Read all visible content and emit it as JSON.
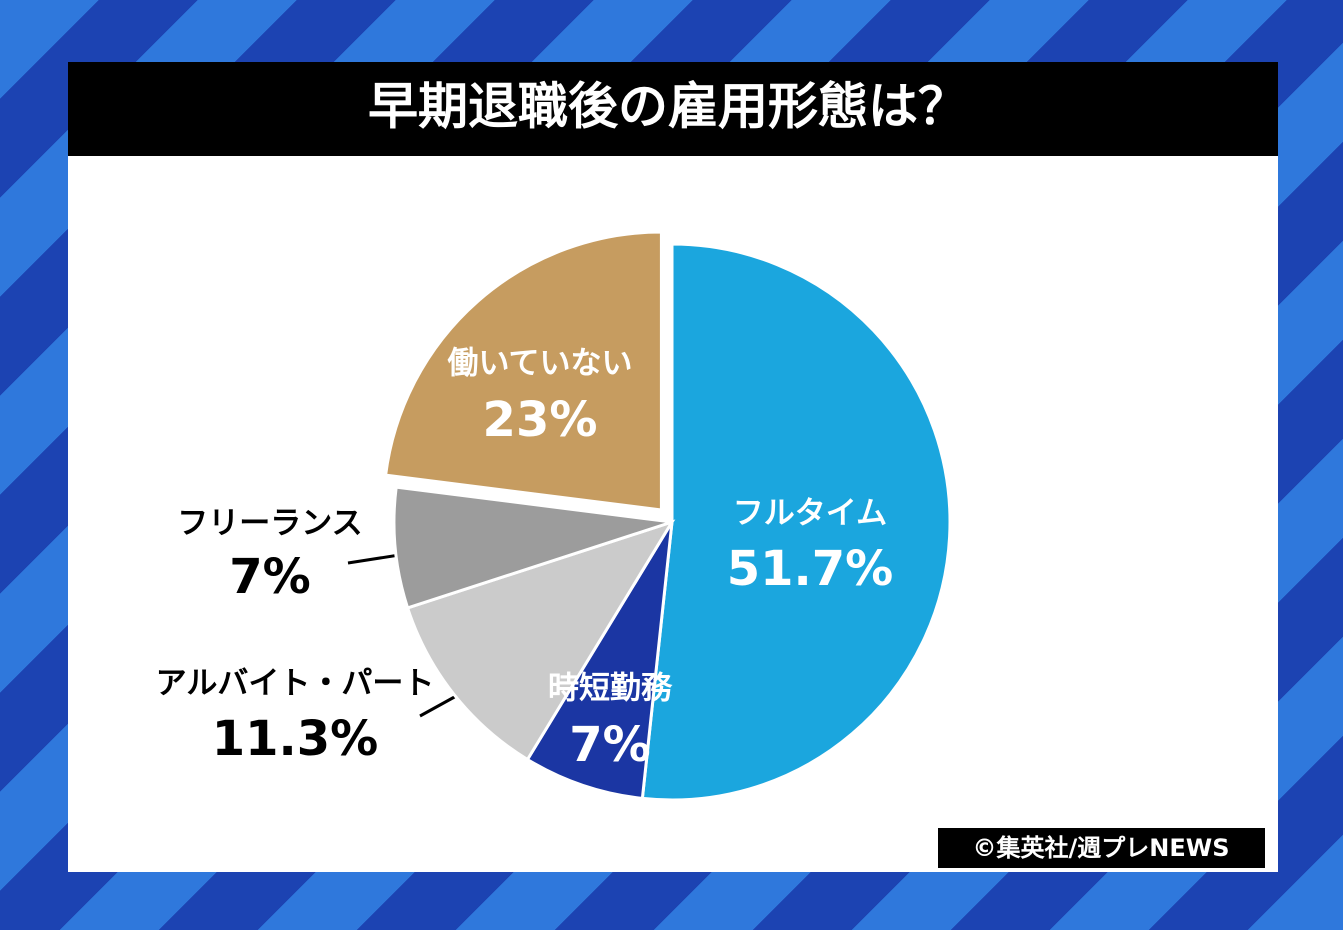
{
  "chart_data": {
    "type": "pie",
    "title": "早期退職後の雇用形態は？",
    "categories": [
      "フルタイム",
      "時短勤務",
      "アルバイト・パート",
      "フリーランス",
      "働いていない"
    ],
    "values": [
      51.7,
      7,
      11.3,
      7,
      23
    ],
    "value_labels": [
      "51.7%",
      "7%",
      "11.3%",
      "7%",
      "23%"
    ],
    "colors": [
      "#1ba6de",
      "#1b36a3",
      "#cbcbcb",
      "#9c9c9c",
      "#c69c60"
    ],
    "source": "©集英社/週プレNEWS"
  }
}
